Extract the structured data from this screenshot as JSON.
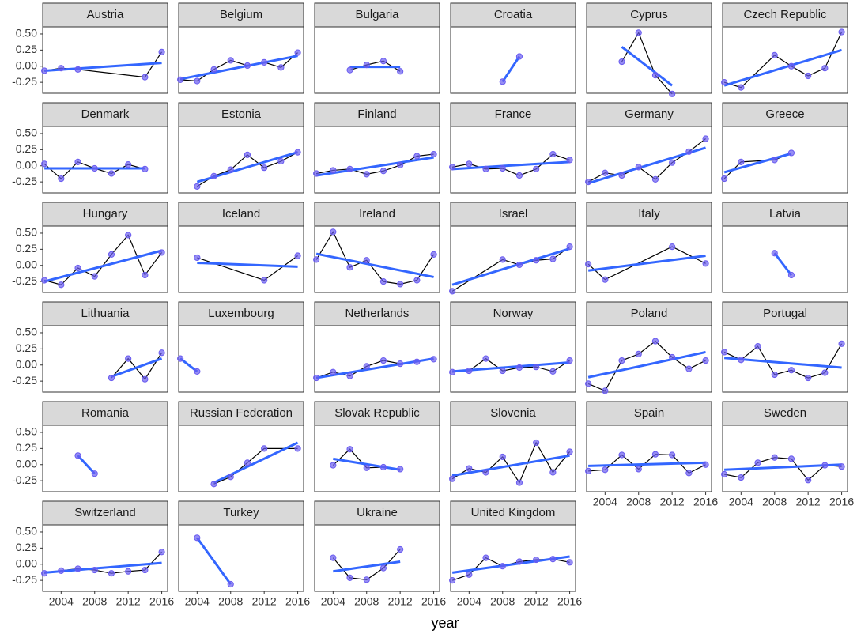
{
  "chart_data": {
    "type": "facet",
    "xlabel": "year",
    "xlim": [
      2001.8,
      2016.7
    ],
    "ylim": [
      -0.42,
      0.61
    ],
    "xticks": [
      2004,
      2008,
      2012,
      2016
    ],
    "yticks": [
      -0.25,
      {
        "value": 0,
        "label": "0.00"
      },
      0.25,
      {
        "value": 0.5,
        "label": "0.50"
      }
    ],
    "grid": false,
    "point_color": "#6a5cf0",
    "line_color": "#000000",
    "fit_color": "#3366ff",
    "strip_color": "#d9d9d9",
    "panels": [
      {
        "title": "Austria",
        "x": [
          2002,
          2004,
          2006,
          2014,
          2016
        ],
        "values": [
          -0.07,
          -0.03,
          -0.05,
          -0.17,
          0.22
        ],
        "fit": [
          -0.07,
          0.05
        ]
      },
      {
        "title": "Belgium",
        "x": [
          2002,
          2004,
          2006,
          2008,
          2010,
          2012,
          2014,
          2016
        ],
        "values": [
          -0.21,
          -0.23,
          -0.05,
          0.09,
          0.01,
          0.06,
          -0.02,
          0.21
        ],
        "fit": [
          -0.2,
          0.16
        ]
      },
      {
        "title": "Bulgaria",
        "x": [
          2006,
          2008,
          2010,
          2012
        ],
        "values": [
          -0.06,
          0.02,
          0.08,
          -0.08
        ],
        "fit": [
          -0.01,
          -0.01
        ]
      },
      {
        "title": "Croatia",
        "x": [
          2008,
          2010
        ],
        "values": [
          -0.24,
          0.15
        ],
        "fit": [
          -0.24,
          0.15
        ]
      },
      {
        "title": "Cyprus",
        "x": [
          2006,
          2008,
          2010,
          2012
        ],
        "values": [
          0.07,
          0.52,
          -0.14,
          -0.43
        ],
        "fit": [
          0.3,
          -0.3
        ]
      },
      {
        "title": "Czech Republic",
        "x": [
          2002,
          2004,
          2008,
          2010,
          2012,
          2014,
          2016
        ],
        "values": [
          -0.25,
          -0.33,
          0.17,
          0.0,
          -0.15,
          -0.03,
          0.53
        ],
        "fit": [
          -0.3,
          0.25
        ]
      },
      {
        "title": "Denmark",
        "x": [
          2002,
          2004,
          2006,
          2008,
          2010,
          2012,
          2014
        ],
        "values": [
          0.03,
          -0.2,
          0.06,
          -0.04,
          -0.12,
          0.02,
          -0.05
        ],
        "fit": [
          -0.04,
          -0.04
        ]
      },
      {
        "title": "Estonia",
        "x": [
          2004,
          2006,
          2008,
          2010,
          2012,
          2014,
          2016
        ],
        "values": [
          -0.32,
          -0.16,
          -0.06,
          0.17,
          -0.03,
          0.07,
          0.21
        ],
        "fit": [
          -0.25,
          0.21
        ]
      },
      {
        "title": "Finland",
        "x": [
          2002,
          2004,
          2006,
          2008,
          2010,
          2012,
          2014,
          2016
        ],
        "values": [
          -0.12,
          -0.07,
          -0.05,
          -0.13,
          -0.08,
          0.01,
          0.15,
          0.18
        ],
        "fit": [
          -0.15,
          0.13
        ]
      },
      {
        "title": "France",
        "x": [
          2002,
          2004,
          2006,
          2008,
          2010,
          2012,
          2014,
          2016
        ],
        "values": [
          -0.02,
          0.03,
          -0.05,
          -0.04,
          -0.15,
          -0.05,
          0.18,
          0.09
        ],
        "fit": [
          -0.05,
          0.06
        ]
      },
      {
        "title": "Germany",
        "x": [
          2002,
          2004,
          2006,
          2008,
          2010,
          2012,
          2014,
          2016
        ],
        "values": [
          -0.25,
          -0.11,
          -0.15,
          -0.02,
          -0.21,
          0.05,
          0.22,
          0.42
        ],
        "fit": [
          -0.27,
          0.28
        ]
      },
      {
        "title": "Greece",
        "x": [
          2002,
          2004,
          2008,
          2010
        ],
        "values": [
          -0.2,
          0.06,
          0.09,
          0.2
        ],
        "fit": [
          -0.1,
          0.19
        ]
      },
      {
        "title": "Hungary",
        "x": [
          2002,
          2004,
          2006,
          2008,
          2010,
          2012,
          2014,
          2016
        ],
        "values": [
          -0.23,
          -0.3,
          -0.04,
          -0.17,
          0.17,
          0.47,
          -0.15,
          0.2
        ],
        "fit": [
          -0.25,
          0.23
        ]
      },
      {
        "title": "Iceland",
        "x": [
          2004,
          2012,
          2016
        ],
        "values": [
          0.12,
          -0.23,
          0.15
        ],
        "fit": [
          0.04,
          -0.02
        ]
      },
      {
        "title": "Ireland",
        "x": [
          2002,
          2004,
          2006,
          2008,
          2010,
          2012,
          2014,
          2016
        ],
        "values": [
          0.09,
          0.52,
          -0.03,
          0.08,
          -0.25,
          -0.29,
          -0.23,
          0.17
        ],
        "fit": [
          0.18,
          -0.18
        ]
      },
      {
        "title": "Israel",
        "x": [
          2002,
          2008,
          2010,
          2012,
          2014,
          2016
        ],
        "values": [
          -0.4,
          0.09,
          0.01,
          0.08,
          0.1,
          0.29
        ],
        "fit": [
          -0.3,
          0.26
        ]
      },
      {
        "title": "Italy",
        "x": [
          2002,
          2004,
          2012,
          2016
        ],
        "values": [
          0.02,
          -0.22,
          0.29,
          0.03
        ],
        "fit": [
          -0.08,
          0.15
        ]
      },
      {
        "title": "Latvia",
        "x": [
          2008,
          2010
        ],
        "values": [
          0.19,
          -0.15
        ],
        "fit": [
          0.19,
          -0.15
        ]
      },
      {
        "title": "Lithuania",
        "x": [
          2010,
          2012,
          2014,
          2016
        ],
        "values": [
          -0.2,
          0.1,
          -0.22,
          0.19
        ],
        "fit": [
          -0.18,
          0.1
        ]
      },
      {
        "title": "Luxembourg",
        "x": [
          2002,
          2004
        ],
        "values": [
          0.1,
          -0.1
        ],
        "fit": [
          0.1,
          -0.1
        ]
      },
      {
        "title": "Netherlands",
        "x": [
          2002,
          2004,
          2006,
          2008,
          2010,
          2012,
          2014,
          2016
        ],
        "values": [
          -0.2,
          -0.11,
          -0.17,
          -0.02,
          0.07,
          0.02,
          0.05,
          0.09
        ],
        "fit": [
          -0.2,
          0.1
        ]
      },
      {
        "title": "Norway",
        "x": [
          2002,
          2004,
          2006,
          2008,
          2010,
          2012,
          2014,
          2016
        ],
        "values": [
          -0.11,
          -0.09,
          0.1,
          -0.09,
          -0.04,
          -0.03,
          -0.1,
          0.07
        ],
        "fit": [
          -0.1,
          0.04
        ]
      },
      {
        "title": "Poland",
        "x": [
          2002,
          2004,
          2006,
          2008,
          2010,
          2012,
          2014,
          2016
        ],
        "values": [
          -0.29,
          -0.4,
          0.07,
          0.17,
          0.37,
          0.12,
          -0.06,
          0.07
        ],
        "fit": [
          -0.19,
          0.2
        ]
      },
      {
        "title": "Portugal",
        "x": [
          2002,
          2004,
          2006,
          2008,
          2010,
          2012,
          2014,
          2016
        ],
        "values": [
          0.2,
          0.08,
          0.29,
          -0.15,
          -0.08,
          -0.2,
          -0.12,
          0.33
        ],
        "fit": [
          0.11,
          -0.04
        ]
      },
      {
        "title": "Romania",
        "x": [
          2006,
          2008
        ],
        "values": [
          0.14,
          -0.14
        ],
        "fit": [
          0.14,
          -0.14
        ]
      },
      {
        "title": "Russian Federation",
        "x": [
          2006,
          2008,
          2010,
          2012,
          2016
        ],
        "values": [
          -0.3,
          -0.19,
          0.03,
          0.25,
          0.25
        ],
        "fit": [
          -0.28,
          0.34
        ]
      },
      {
        "title": "Slovak Republic",
        "x": [
          2004,
          2006,
          2008,
          2010,
          2012
        ],
        "values": [
          -0.01,
          0.24,
          -0.05,
          -0.04,
          -0.07
        ],
        "fit": [
          0.09,
          -0.08
        ]
      },
      {
        "title": "Slovenia",
        "x": [
          2002,
          2004,
          2006,
          2008,
          2010,
          2012,
          2014,
          2016
        ],
        "values": [
          -0.22,
          -0.06,
          -0.12,
          0.12,
          -0.28,
          0.34,
          -0.12,
          0.2
        ],
        "fit": [
          -0.17,
          0.14
        ]
      },
      {
        "title": "Spain",
        "x": [
          2002,
          2004,
          2006,
          2008,
          2010,
          2012,
          2014,
          2016
        ],
        "values": [
          -0.1,
          -0.08,
          0.15,
          -0.07,
          0.16,
          0.15,
          -0.13,
          0.0
        ],
        "fit": [
          -0.02,
          0.03
        ]
      },
      {
        "title": "Sweden",
        "x": [
          2002,
          2004,
          2006,
          2008,
          2010,
          2012,
          2014,
          2016
        ],
        "values": [
          -0.15,
          -0.2,
          0.03,
          0.11,
          0.09,
          -0.24,
          -0.01,
          -0.03
        ],
        "fit": [
          -0.08,
          0.0
        ]
      },
      {
        "title": "Switzerland",
        "x": [
          2002,
          2004,
          2006,
          2008,
          2010,
          2012,
          2014,
          2016
        ],
        "values": [
          -0.14,
          -0.1,
          -0.07,
          -0.09,
          -0.14,
          -0.11,
          -0.09,
          0.19
        ],
        "fit": [
          -0.13,
          0.02
        ]
      },
      {
        "title": "Turkey",
        "x": [
          2004,
          2008
        ],
        "values": [
          0.41,
          -0.31
        ],
        "fit": [
          0.41,
          -0.31
        ]
      },
      {
        "title": "Ukraine",
        "x": [
          2004,
          2006,
          2008,
          2010,
          2012
        ],
        "values": [
          0.1,
          -0.21,
          -0.24,
          -0.06,
          0.23
        ],
        "fit": [
          -0.11,
          0.04
        ]
      },
      {
        "title": "United Kingdom",
        "x": [
          2002,
          2004,
          2006,
          2008,
          2010,
          2012,
          2014,
          2016
        ],
        "values": [
          -0.25,
          -0.16,
          0.1,
          -0.03,
          0.04,
          0.07,
          0.08,
          0.03
        ],
        "fit": [
          -0.13,
          0.12
        ]
      }
    ]
  }
}
